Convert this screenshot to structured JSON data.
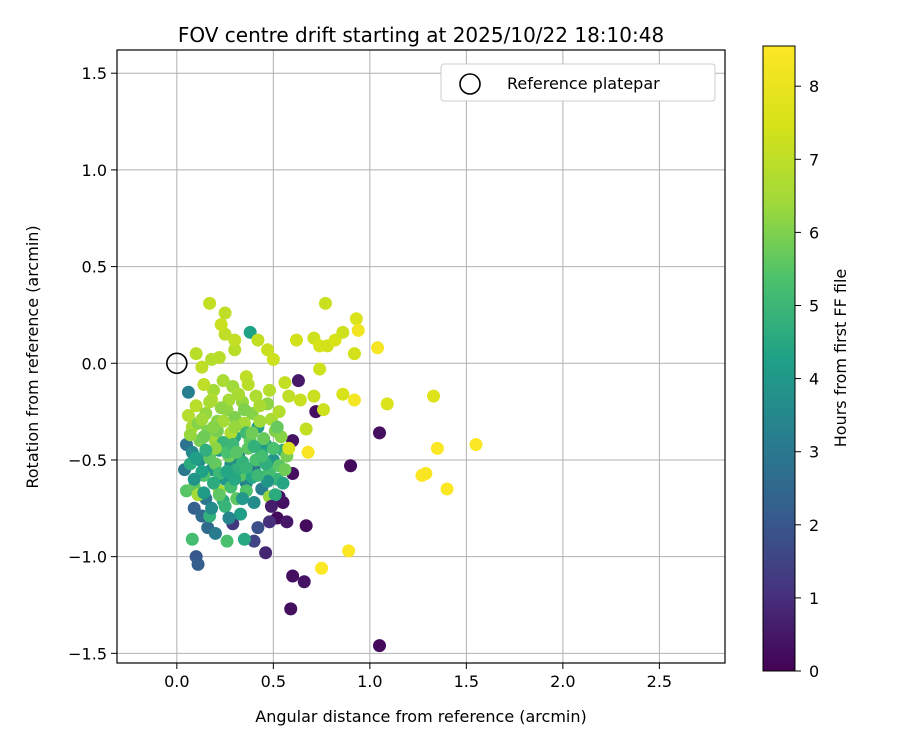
{
  "chart_data": {
    "type": "scatter",
    "title": "FOV centre drift starting at 2025/10/22 18:10:48",
    "xlabel": "Angular distance from reference (arcmin)",
    "ylabel": "Rotation from reference (arcmin)",
    "xlim": [
      -0.31,
      2.84
    ],
    "ylim": [
      -1.55,
      1.62
    ],
    "x_ticks": [
      0.0,
      0.5,
      1.0,
      1.5,
      2.0,
      2.5
    ],
    "x_tick_labels": [
      "0.0",
      "0.5",
      "1.0",
      "1.5",
      "2.0",
      "2.5"
    ],
    "y_ticks": [
      1.5,
      1.0,
      0.5,
      0.0,
      -0.5,
      -1.0,
      -1.5
    ],
    "y_tick_labels": [
      "1.5",
      "1.0",
      "0.5",
      "0.0",
      "−0.5",
      "−1.0",
      "−1.5"
    ],
    "grid": true,
    "legend": {
      "placement": "top-right",
      "label": "Reference platepar"
    },
    "reference_point": {
      "x": 0.0,
      "y": 0.0
    },
    "colorbar": {
      "label": "Hours from first FF file",
      "min": 0,
      "max": 8.55,
      "ticks": [
        0,
        1,
        2,
        3,
        4,
        5,
        6,
        7,
        8
      ],
      "tick_labels": [
        "0",
        "1",
        "2",
        "3",
        "4",
        "5",
        "6",
        "7",
        "8"
      ],
      "colormap": "viridis"
    },
    "points": [
      [
        0.52,
        -0.8,
        0.2
      ],
      [
        0.55,
        -0.72,
        0.3
      ],
      [
        0.53,
        -0.69,
        0.4
      ],
      [
        0.57,
        -0.82,
        0.5
      ],
      [
        0.6,
        -0.57,
        0.3
      ],
      [
        0.67,
        -0.84,
        0.2
      ],
      [
        0.6,
        -1.1,
        0.3
      ],
      [
        0.66,
        -1.13,
        0.4
      ],
      [
        0.59,
        -1.27,
        0.3
      ],
      [
        0.63,
        -0.09,
        0.5
      ],
      [
        0.6,
        -0.4,
        0.4
      ],
      [
        0.72,
        -0.25,
        0.3
      ],
      [
        0.9,
        -0.53,
        0.2
      ],
      [
        1.05,
        -0.36,
        0.3
      ],
      [
        1.05,
        -1.46,
        0.2
      ],
      [
        0.46,
        -0.98,
        0.8
      ],
      [
        0.29,
        -0.83,
        1.2
      ],
      [
        0.4,
        -0.92,
        1.5
      ],
      [
        0.48,
        -0.82,
        1.0
      ],
      [
        0.42,
        -0.85,
        1.8
      ],
      [
        0.1,
        -1.0,
        2.0
      ],
      [
        0.11,
        -1.04,
        2.2
      ],
      [
        0.09,
        -0.75,
        2.3
      ],
      [
        0.13,
        -0.79,
        2.5
      ],
      [
        0.16,
        -0.85,
        2.6
      ],
      [
        0.05,
        -0.42,
        2.8
      ],
      [
        0.04,
        -0.55,
        3.0
      ],
      [
        0.06,
        -0.15,
        3.2
      ],
      [
        0.15,
        -0.7,
        2.9
      ],
      [
        0.2,
        -0.88,
        3.1
      ],
      [
        0.08,
        -0.46,
        3.5
      ],
      [
        0.12,
        -0.5,
        3.6
      ],
      [
        0.18,
        -0.55,
        3.8
      ],
      [
        0.22,
        -0.45,
        3.9
      ],
      [
        0.25,
        -0.6,
        4.0
      ],
      [
        0.28,
        -0.52,
        3.7
      ],
      [
        0.32,
        -0.48,
        3.4
      ],
      [
        0.36,
        -0.62,
        3.3
      ],
      [
        0.4,
        -0.55,
        3.0
      ],
      [
        0.44,
        -0.65,
        3.2
      ],
      [
        0.38,
        0.16,
        4.3
      ],
      [
        0.35,
        -0.91,
        4.5
      ],
      [
        0.17,
        -0.79,
        4.8
      ],
      [
        0.24,
        -0.71,
        4.6
      ],
      [
        0.3,
        -0.38,
        4.4
      ],
      [
        0.42,
        -0.33,
        4.2
      ],
      [
        0.46,
        -0.42,
        4.1
      ],
      [
        0.5,
        -0.5,
        4.0
      ],
      [
        0.55,
        -0.45,
        4.7
      ],
      [
        0.52,
        -0.6,
        4.9
      ],
      [
        0.08,
        -0.91,
        5.2
      ],
      [
        0.26,
        -0.92,
        5.3
      ],
      [
        0.05,
        -0.66,
        5.5
      ],
      [
        0.09,
        -0.64,
        5.6
      ],
      [
        0.14,
        -0.58,
        5.4
      ],
      [
        0.2,
        -0.52,
        5.7
      ],
      [
        0.27,
        -0.48,
        5.8
      ],
      [
        0.33,
        -0.58,
        5.5
      ],
      [
        0.37,
        -0.44,
        5.6
      ],
      [
        0.41,
        -0.5,
        5.3
      ],
      [
        0.48,
        -0.56,
        5.2
      ],
      [
        0.53,
        -0.53,
        5.5
      ],
      [
        0.57,
        -0.48,
        5.9
      ],
      [
        0.31,
        -0.7,
        5.6
      ],
      [
        0.36,
        -0.66,
        5.4
      ],
      [
        0.16,
        -0.35,
        6.0
      ],
      [
        0.21,
        -0.3,
        6.1
      ],
      [
        0.26,
        -0.24,
        6.2
      ],
      [
        0.3,
        -0.28,
        6.0
      ],
      [
        0.34,
        -0.2,
        6.3
      ],
      [
        0.39,
        -0.26,
        6.1
      ],
      [
        0.43,
        -0.3,
        6.4
      ],
      [
        0.47,
        -0.21,
        6.2
      ],
      [
        0.51,
        -0.35,
        6.0
      ],
      [
        0.48,
        -0.69,
        6.3
      ],
      [
        0.19,
        -0.14,
        6.5
      ],
      [
        0.24,
        -0.09,
        6.6
      ],
      [
        0.29,
        -0.12,
        6.4
      ],
      [
        0.11,
        -0.68,
        6.5
      ],
      [
        0.22,
        -0.66,
        6.6
      ],
      [
        0.06,
        -0.27,
        6.8
      ],
      [
        0.1,
        -0.22,
        6.9
      ],
      [
        0.13,
        -0.02,
        7.0
      ],
      [
        0.18,
        0.02,
        6.8
      ],
      [
        0.22,
        0.03,
        6.9
      ],
      [
        0.25,
        0.15,
        7.0
      ],
      [
        0.3,
        0.07,
        6.9
      ],
      [
        0.3,
        0.12,
        7.1
      ],
      [
        0.23,
        0.2,
        7.2
      ],
      [
        0.25,
        0.26,
        7.0
      ],
      [
        0.17,
        0.31,
        7.1
      ],
      [
        0.1,
        0.05,
        6.9
      ],
      [
        0.36,
        -0.07,
        7.0
      ],
      [
        0.42,
        0.12,
        7.1
      ],
      [
        0.47,
        0.07,
        7.2
      ],
      [
        0.5,
        0.02,
        7.3
      ],
      [
        0.56,
        -0.1,
        7.1
      ],
      [
        0.58,
        -0.17,
        7.0
      ],
      [
        0.64,
        -0.19,
        7.2
      ],
      [
        0.67,
        -0.34,
        7.1
      ],
      [
        0.71,
        -0.17,
        7.2
      ],
      [
        0.74,
        -0.03,
        7.3
      ],
      [
        0.62,
        0.12,
        7.4
      ],
      [
        0.71,
        0.13,
        7.3
      ],
      [
        0.74,
        0.09,
        7.5
      ],
      [
        0.78,
        0.09,
        7.4
      ],
      [
        0.77,
        0.31,
        7.2
      ],
      [
        0.82,
        0.12,
        7.5
      ],
      [
        0.86,
        0.16,
        7.3
      ],
      [
        0.92,
        0.05,
        7.4
      ],
      [
        0.93,
        0.23,
        7.6
      ],
      [
        0.86,
        -0.16,
        7.5
      ],
      [
        0.76,
        -0.24,
        7.3
      ],
      [
        0.94,
        0.17,
        8.2
      ],
      [
        1.04,
        0.08,
        8.3
      ],
      [
        1.09,
        -0.21,
        7.6
      ],
      [
        1.33,
        -0.17,
        7.7
      ],
      [
        0.92,
        -0.19,
        8.3
      ],
      [
        0.68,
        -0.46,
        8.4
      ],
      [
        0.75,
        -1.06,
        8.5
      ],
      [
        0.89,
        -0.97,
        8.5
      ],
      [
        1.27,
        -0.58,
        8.5
      ],
      [
        1.29,
        -0.57,
        8.4
      ],
      [
        1.35,
        -0.44,
        8.5
      ],
      [
        1.4,
        -0.65,
        8.5
      ],
      [
        1.55,
        -0.42,
        8.5
      ],
      [
        0.58,
        -0.44,
        7.6
      ],
      [
        0.2,
        -0.4,
        6.4
      ],
      [
        0.28,
        -0.36,
        6.7
      ],
      [
        0.35,
        -0.31,
        6.5
      ],
      [
        0.15,
        -0.26,
        6.3
      ],
      [
        0.12,
        -0.4,
        5.9
      ],
      [
        0.16,
        -0.46,
        5.4
      ],
      [
        0.22,
        -0.57,
        5.0
      ],
      [
        0.24,
        -0.41,
        4.9
      ],
      [
        0.31,
        -0.55,
        4.7
      ],
      [
        0.39,
        -0.59,
        4.4
      ],
      [
        0.44,
        -0.47,
        4.5
      ],
      [
        0.36,
        -0.36,
        5.1
      ],
      [
        0.28,
        -0.64,
        5.2
      ],
      [
        0.19,
        -0.62,
        4.6
      ],
      [
        0.14,
        -0.67,
        4.1
      ],
      [
        0.25,
        -0.74,
        4.9
      ],
      [
        0.33,
        -0.78,
        4.2
      ],
      [
        0.4,
        -0.72,
        3.6
      ],
      [
        0.47,
        -0.61,
        3.9
      ],
      [
        0.51,
        -0.68,
        4.6
      ],
      [
        0.45,
        -0.39,
        5.7
      ],
      [
        0.49,
        -0.29,
        6.6
      ],
      [
        0.53,
        -0.25,
        6.8
      ],
      [
        0.41,
        -0.17,
        6.7
      ],
      [
        0.37,
        -0.11,
        6.9
      ],
      [
        0.32,
        -0.16,
        6.6
      ],
      [
        0.27,
        -0.19,
        6.5
      ],
      [
        0.23,
        -0.23,
        6.2
      ],
      [
        0.18,
        -0.19,
        6.8
      ],
      [
        0.14,
        -0.11,
        7.0
      ],
      [
        0.08,
        -0.33,
        6.6
      ],
      [
        0.07,
        -0.37,
        6.3
      ],
      [
        0.11,
        -0.31,
        6.1
      ],
      [
        0.17,
        -0.49,
        5.6
      ],
      [
        0.21,
        -0.35,
        5.9
      ],
      [
        0.26,
        -0.46,
        5.3
      ],
      [
        0.29,
        -0.42,
        5.0
      ],
      [
        0.34,
        -0.51,
        4.8
      ],
      [
        0.38,
        -0.4,
        5.6
      ],
      [
        0.42,
        -0.58,
        5.0
      ],
      [
        0.46,
        -0.52,
        4.7
      ],
      [
        0.5,
        -0.44,
        5.3
      ],
      [
        0.54,
        -0.38,
        6.1
      ],
      [
        0.56,
        -0.55,
        5.8
      ],
      [
        0.13,
        -0.56,
        4.3
      ],
      [
        0.09,
        -0.6,
        3.9
      ],
      [
        0.07,
        -0.52,
        4.6
      ],
      [
        0.3,
        -0.6,
        4.5
      ],
      [
        0.18,
        -0.75,
        3.6
      ],
      [
        0.27,
        -0.8,
        3.4
      ],
      [
        0.34,
        -0.7,
        4.0
      ],
      [
        0.22,
        -0.68,
        5.6
      ],
      [
        0.2,
        -0.44,
        6.2
      ],
      [
        0.24,
        -0.3,
        6.5
      ],
      [
        0.3,
        -0.33,
        6.3
      ],
      [
        0.35,
        -0.24,
        6.0
      ],
      [
        0.39,
        -0.36,
        5.8
      ],
      [
        0.43,
        -0.22,
        6.6
      ],
      [
        0.48,
        -0.14,
        6.8
      ],
      [
        0.52,
        -0.33,
        5.7
      ],
      [
        0.44,
        -0.48,
        5.2
      ],
      [
        0.36,
        -0.54,
        4.9
      ],
      [
        0.26,
        -0.56,
        4.4
      ],
      [
        0.15,
        -0.45,
        4.7
      ],
      [
        0.1,
        -0.49,
        4.2
      ],
      [
        0.13,
        -0.29,
        6.4
      ],
      [
        0.17,
        -0.2,
        6.6
      ],
      [
        0.19,
        -0.33,
        6.1
      ],
      [
        0.14,
        -0.38,
        5.8
      ],
      [
        0.31,
        -0.46,
        5.5
      ],
      [
        0.4,
        -0.43,
        4.8
      ],
      [
        0.55,
        -0.62,
        4.4
      ],
      [
        0.49,
        -0.74,
        0.6
      ]
    ]
  }
}
